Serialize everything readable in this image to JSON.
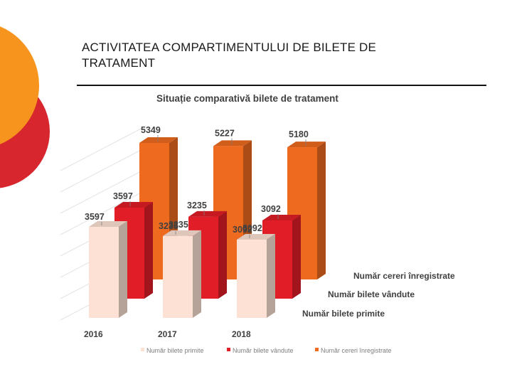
{
  "page": {
    "title": "ACTIVITATEA COMPARTIMENTULUI DE BILETE DE TRATAMENT"
  },
  "chart_data": {
    "type": "bar",
    "title": "Situație comparativă bilete de tratament",
    "categories": [
      "2016",
      "2017",
      "2018"
    ],
    "series": [
      {
        "name": "Număr bilete primite",
        "values": [
          3597,
          3235,
          3092
        ],
        "color": "#fce1d4"
      },
      {
        "name": "Număr bilete vândute",
        "values": [
          3597,
          3235,
          3092
        ],
        "color": "#e11d27"
      },
      {
        "name": "Număr cereri înregistrate",
        "values": [
          5349,
          5227,
          5180
        ],
        "color": "#ee6a1f"
      }
    ],
    "depth_labels": [
      "Număr cereri înregistrate",
      "Număr bilete vândute",
      "Număr bilete primite"
    ],
    "ylim": [
      0,
      6000
    ],
    "legend": "bottom"
  },
  "colors": {
    "deco_orange": "#f7941d",
    "deco_red": "#d7262e"
  }
}
